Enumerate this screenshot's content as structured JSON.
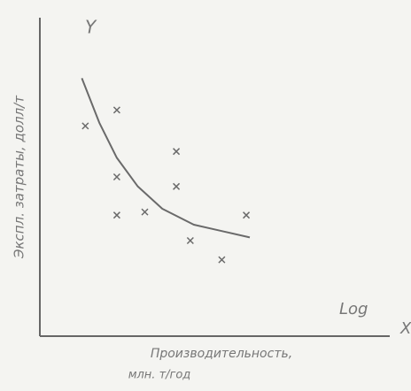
{
  "chart_data": {
    "type": "scatter",
    "y_axis_letter": "Y",
    "x_axis_letter": "X",
    "x_scale_note": "Log",
    "ylabel": "Экспл. затраты, долл/т",
    "xlabel": [
      "Производительность,",
      "млн. т/год"
    ],
    "xlim": [
      0,
      100
    ],
    "ylim": [
      0,
      100
    ],
    "grid": false,
    "color": "#6a6a6a",
    "series": [
      {
        "kind": "scatter",
        "x": [
          13,
          22,
          22,
          22,
          30,
          39,
          39,
          43,
          52,
          59
        ],
        "values": [
          66,
          71,
          50,
          38,
          39,
          58,
          47,
          30,
          24,
          38
        ]
      },
      {
        "kind": "line",
        "x": [
          12,
          17,
          22,
          28,
          35,
          44,
          52,
          60
        ],
        "values": [
          81,
          67,
          56,
          47,
          40,
          35,
          33,
          31
        ]
      }
    ]
  }
}
